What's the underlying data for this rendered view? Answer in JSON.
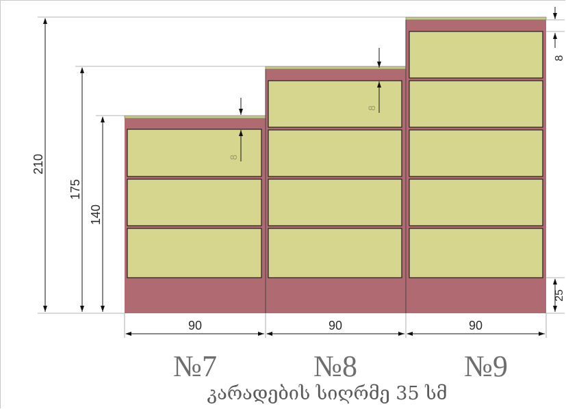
{
  "colors": {
    "shelf_fill": "#d6d68f",
    "shelf_stroke": "#1f1f1f",
    "frame_fill": "#b06a72",
    "top_strip": "#c8c887",
    "dim_line": "#1a1a1a",
    "leader_line": "#9a9a9a"
  },
  "dimensions": {
    "total_height": "210",
    "height_8": "175",
    "height_7": "140",
    "plinth": "25",
    "drawer_gap": "8",
    "gap_label_8": "8",
    "gap_label_7": "8"
  },
  "cabinets": [
    {
      "label": "№7",
      "width": "90"
    },
    {
      "label": "№8",
      "width": "90"
    },
    {
      "label": "№9",
      "width": "90"
    }
  ],
  "caption": "კარადების სიღრმე 35 სმ"
}
